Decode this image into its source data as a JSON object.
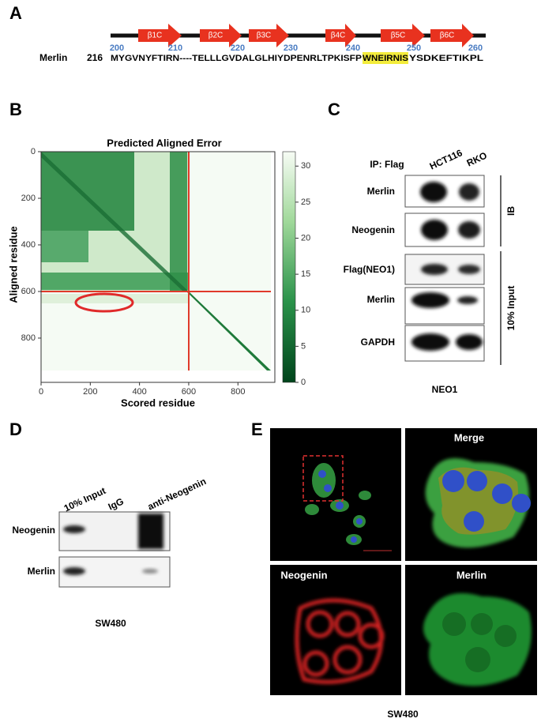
{
  "panel_a": {
    "label": "A",
    "strands": [
      "β1C",
      "β2C",
      "β3C",
      "β4C",
      "β5C",
      "β6C"
    ],
    "positions": [
      200,
      210,
      220,
      230,
      240,
      250,
      260
    ],
    "protein": "Merlin",
    "start": 216,
    "sequence_before": "MYGVNYFTIRN----TELLLGVDALGLHIYDPENRLTPKISFP",
    "sequence_highlight": "WNEIRNIS",
    "sequence_after": "YSDKEFTIKPL"
  },
  "panel_b": {
    "label": "B",
    "title": "Predicted Aligned Error",
    "x_label": "Scored residue",
    "y_label": "Aligned residue",
    "xlim": [
      0,
      950
    ],
    "ylim": [
      0,
      990
    ],
    "xticks": [
      0,
      200,
      400,
      600,
      800
    ],
    "yticks": [
      0,
      200,
      400,
      600,
      800
    ],
    "colorbar_lim": [
      0,
      32
    ],
    "colorbar_ticks": [
      0,
      5,
      10,
      15,
      20,
      25,
      30
    ]
  },
  "panel_c": {
    "label": "C",
    "ip": "IP: Flag",
    "cell_lines": [
      "HCT116",
      "RKO"
    ],
    "rows": [
      "Merlin",
      "Neogenin",
      "Flag(NEO1)",
      "Merlin",
      "GAPDH"
    ],
    "ib": "IB",
    "input": "10% Input",
    "footer": "NEO1"
  },
  "panel_d": {
    "label": "D",
    "lanes": [
      "10% Input",
      "IgG",
      "anti-Neogenin"
    ],
    "rows": [
      "Neogenin",
      "Merlin"
    ],
    "footer": "SW480"
  },
  "panel_e": {
    "label": "E",
    "merge": "Merge",
    "neogenin": "Neogenin",
    "merlin": "Merlin",
    "footer": "SW480"
  }
}
